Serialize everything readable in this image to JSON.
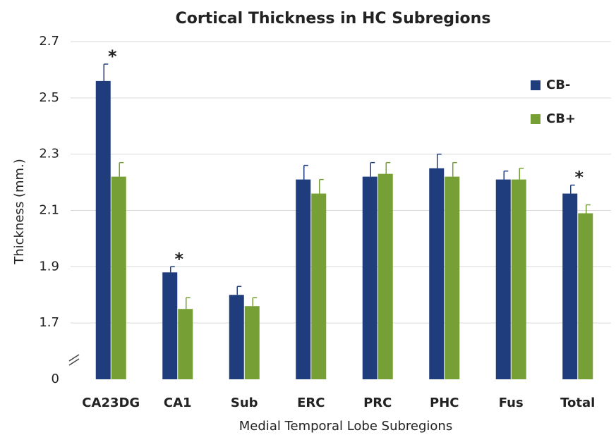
{
  "chart_data": {
    "type": "bar",
    "title": "Cortical Thickness in HC Subregions",
    "xlabel": "Medial Temporal Lobe Subregions",
    "ylabel": "Thickness (mm.)",
    "categories": [
      "CA23DG",
      "CA1",
      "Sub",
      "ERC",
      "PRC",
      "PHC",
      "Fus",
      "Total"
    ],
    "series": [
      {
        "name": "CB-",
        "color": "#1f3d7c",
        "values": [
          2.56,
          1.88,
          1.8,
          2.21,
          2.22,
          2.25,
          2.21,
          2.16
        ],
        "errors": [
          0.06,
          0.02,
          0.03,
          0.05,
          0.05,
          0.05,
          0.03,
          0.03
        ]
      },
      {
        "name": "CB+",
        "color": "#76a035",
        "values": [
          2.22,
          1.75,
          1.76,
          2.16,
          2.23,
          2.22,
          2.21,
          2.09
        ],
        "errors": [
          0.05,
          0.04,
          0.03,
          0.05,
          0.04,
          0.05,
          0.04,
          0.03
        ]
      }
    ],
    "annotations": [
      {
        "text": "*",
        "category": "CA23DG"
      },
      {
        "text": "*",
        "category": "CA1"
      },
      {
        "text": "*",
        "category": "Total"
      }
    ],
    "ylim": [
      0,
      2.7
    ],
    "axis_break": [
      0,
      1.5
    ],
    "yticks": [
      0,
      1.7,
      1.9,
      2.1,
      2.3,
      2.5,
      2.7
    ],
    "grid": true,
    "legend": "upper right"
  }
}
